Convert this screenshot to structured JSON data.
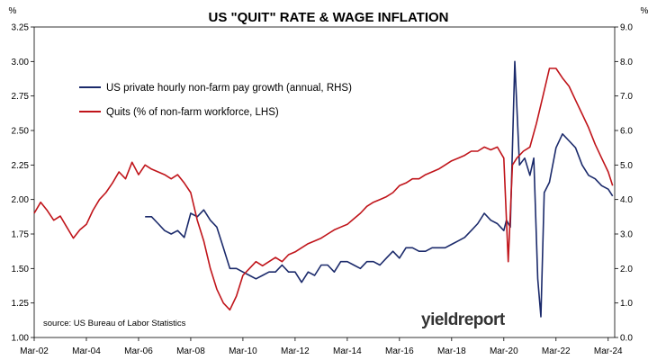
{
  "chart_data": {
    "type": "line",
    "title": "US \"QUIT\" RATE & WAGE INFLATION",
    "left_axis": {
      "unit": "%",
      "ticks": [
        "1.00",
        "1.25",
        "1.50",
        "1.75",
        "2.00",
        "2.25",
        "2.50",
        "2.75",
        "3.00",
        "3.25"
      ],
      "ylim": [
        1.0,
        3.25
      ]
    },
    "right_axis": {
      "unit": "%",
      "ticks": [
        "0.0",
        "1.0",
        "2.0",
        "3.0",
        "4.0",
        "5.0",
        "6.0",
        "7.0",
        "8.0",
        "9.0"
      ],
      "ylim": [
        0.0,
        9.0
      ]
    },
    "x_axis": {
      "ticks": [
        "Mar-02",
        "Mar-04",
        "Mar-06",
        "Mar-08",
        "Mar-10",
        "Mar-12",
        "Mar-14",
        "Mar-16",
        "Mar-18",
        "Mar-20",
        "Mar-22",
        "Mar-24"
      ],
      "xlim": [
        2002.0,
        2024.25
      ]
    },
    "grid": false,
    "legend_position": "top-left",
    "source_note": "source: US Bureau of Labor Statistics",
    "logo": "yieldreport",
    "series": [
      {
        "name": "US private hourly non-farm pay growth (annual, RHS)",
        "axis": "right",
        "color": "#1b2a6b",
        "x": [
          2006.25,
          2006.5,
          2006.75,
          2007.0,
          2007.25,
          2007.5,
          2007.75,
          2008.0,
          2008.25,
          2008.5,
          2008.75,
          2009.0,
          2009.25,
          2009.5,
          2009.75,
          2010.0,
          2010.25,
          2010.5,
          2010.75,
          2011.0,
          2011.25,
          2011.5,
          2011.75,
          2012.0,
          2012.25,
          2012.5,
          2012.75,
          2013.0,
          2013.25,
          2013.5,
          2013.75,
          2014.0,
          2014.25,
          2014.5,
          2014.75,
          2015.0,
          2015.25,
          2015.5,
          2015.75,
          2016.0,
          2016.25,
          2016.5,
          2016.75,
          2017.0,
          2017.25,
          2017.5,
          2017.75,
          2018.0,
          2018.25,
          2018.5,
          2018.75,
          2019.0,
          2019.25,
          2019.5,
          2019.75,
          2020.0,
          2020.1,
          2020.25,
          2020.42,
          2020.6,
          2020.8,
          2021.0,
          2021.15,
          2021.3,
          2021.42,
          2021.55,
          2021.75,
          2022.0,
          2022.25,
          2022.5,
          2022.75,
          2023.0,
          2023.25,
          2023.5,
          2023.75,
          2024.0,
          2024.17
        ],
        "values": [
          3.5,
          3.5,
          3.3,
          3.1,
          3.0,
          3.1,
          2.9,
          3.6,
          3.5,
          3.7,
          3.4,
          3.2,
          2.6,
          2.0,
          2.0,
          1.9,
          1.8,
          1.7,
          1.8,
          1.9,
          1.9,
          2.1,
          1.9,
          1.9,
          1.6,
          1.9,
          1.8,
          2.1,
          2.1,
          1.9,
          2.2,
          2.2,
          2.1,
          2.0,
          2.2,
          2.2,
          2.1,
          2.3,
          2.5,
          2.3,
          2.6,
          2.6,
          2.5,
          2.5,
          2.6,
          2.6,
          2.6,
          2.7,
          2.8,
          2.9,
          3.1,
          3.3,
          3.6,
          3.4,
          3.3,
          3.1,
          3.4,
          3.2,
          8.0,
          5.0,
          5.2,
          4.7,
          5.2,
          1.7,
          0.6,
          4.2,
          4.5,
          5.5,
          5.9,
          5.7,
          5.5,
          5.0,
          4.7,
          4.6,
          4.4,
          4.3,
          4.1
        ]
      },
      {
        "name": "Quits (% of non-farm workforce, LHS)",
        "axis": "left",
        "color": "#c0141a",
        "x": [
          2002.0,
          2002.25,
          2002.5,
          2002.75,
          2003.0,
          2003.25,
          2003.5,
          2003.75,
          2004.0,
          2004.25,
          2004.5,
          2004.75,
          2005.0,
          2005.25,
          2005.5,
          2005.75,
          2006.0,
          2006.25,
          2006.5,
          2006.75,
          2007.0,
          2007.25,
          2007.5,
          2007.75,
          2008.0,
          2008.25,
          2008.5,
          2008.75,
          2009.0,
          2009.25,
          2009.5,
          2009.75,
          2010.0,
          2010.25,
          2010.5,
          2010.75,
          2011.0,
          2011.25,
          2011.5,
          2011.75,
          2012.0,
          2012.25,
          2012.5,
          2012.75,
          2013.0,
          2013.25,
          2013.5,
          2013.75,
          2014.0,
          2014.25,
          2014.5,
          2014.75,
          2015.0,
          2015.25,
          2015.5,
          2015.75,
          2016.0,
          2016.25,
          2016.5,
          2016.75,
          2017.0,
          2017.25,
          2017.5,
          2017.75,
          2018.0,
          2018.25,
          2018.5,
          2018.75,
          2019.0,
          2019.25,
          2019.5,
          2019.75,
          2020.0,
          2020.17,
          2020.33,
          2020.5,
          2020.75,
          2021.0,
          2021.25,
          2021.5,
          2021.75,
          2022.0,
          2022.25,
          2022.5,
          2022.75,
          2023.0,
          2023.25,
          2023.5,
          2023.75,
          2024.0,
          2024.17
        ],
        "values": [
          1.9,
          1.98,
          1.92,
          1.85,
          1.88,
          1.8,
          1.72,
          1.78,
          1.82,
          1.92,
          2.0,
          2.05,
          2.12,
          2.2,
          2.15,
          2.27,
          2.18,
          2.25,
          2.22,
          2.2,
          2.18,
          2.15,
          2.18,
          2.12,
          2.05,
          1.85,
          1.7,
          1.5,
          1.35,
          1.25,
          1.2,
          1.3,
          1.45,
          1.5,
          1.55,
          1.52,
          1.55,
          1.58,
          1.55,
          1.6,
          1.62,
          1.65,
          1.68,
          1.7,
          1.72,
          1.75,
          1.78,
          1.8,
          1.82,
          1.86,
          1.9,
          1.95,
          1.98,
          2.0,
          2.02,
          2.05,
          2.1,
          2.12,
          2.15,
          2.15,
          2.18,
          2.2,
          2.22,
          2.25,
          2.28,
          2.3,
          2.32,
          2.35,
          2.35,
          2.38,
          2.36,
          2.38,
          2.3,
          1.55,
          2.25,
          2.3,
          2.35,
          2.38,
          2.55,
          2.75,
          2.95,
          2.95,
          2.88,
          2.82,
          2.72,
          2.62,
          2.52,
          2.4,
          2.3,
          2.2,
          2.1
        ]
      }
    ]
  }
}
